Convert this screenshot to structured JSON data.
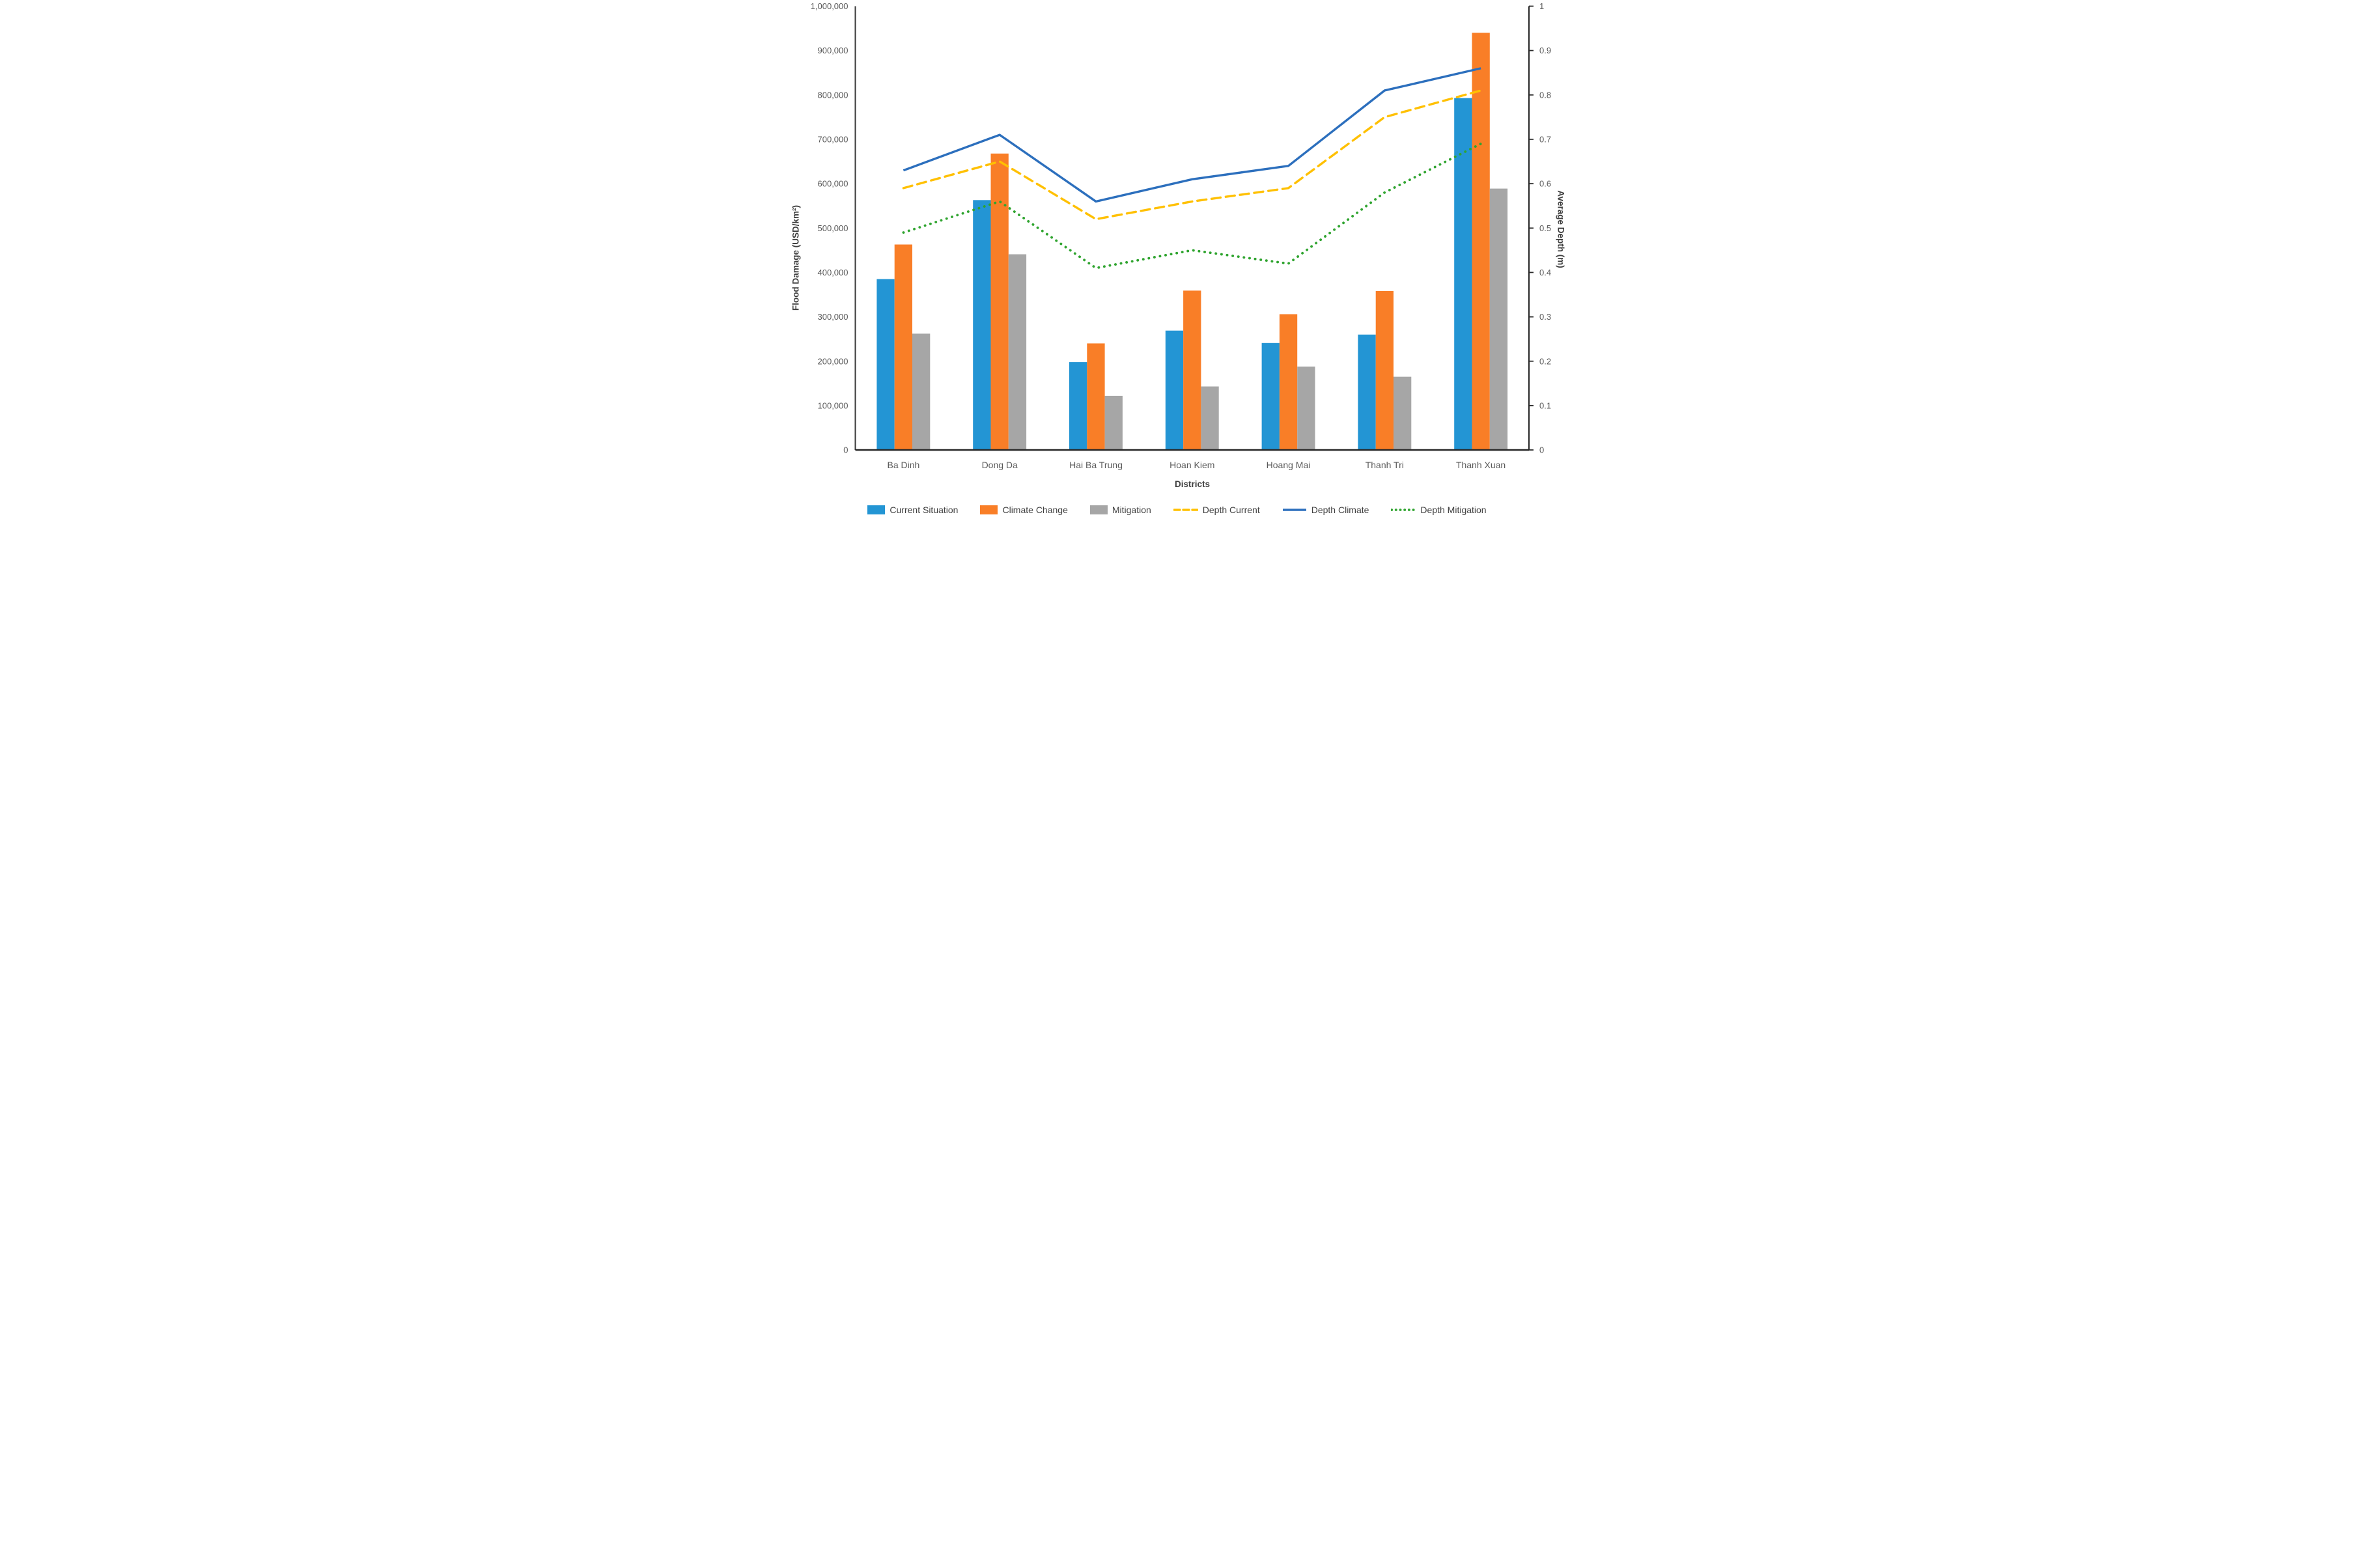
{
  "chart_data": {
    "type": "bar+line",
    "categories": [
      "Ba Dinh",
      "Dong Da",
      "Hai Ba Trung",
      "Hoan Kiem",
      "Hoang Mai",
      "Thanh Tri",
      "Thanh Xuan"
    ],
    "bar_series": [
      {
        "name": "Current Situation",
        "color": "#2395D4",
        "axis": "left",
        "values": [
          385000,
          563000,
          198000,
          269000,
          241000,
          260000,
          793000
        ]
      },
      {
        "name": "Climate Change",
        "color": "#F97E27",
        "axis": "left",
        "values": [
          463000,
          668000,
          240000,
          359000,
          306000,
          358000,
          940000
        ]
      },
      {
        "name": "Mitigation",
        "color": "#A6A6A6",
        "axis": "left",
        "values": [
          262000,
          441000,
          122000,
          143000,
          188000,
          165000,
          589000
        ]
      }
    ],
    "line_series": [
      {
        "name": "Depth Current",
        "color": "#FFC000",
        "style": "dashed",
        "axis": "right",
        "values": [
          0.59,
          0.65,
          0.52,
          0.56,
          0.59,
          0.75,
          0.81
        ]
      },
      {
        "name": "Depth Climate",
        "color": "#2C6FBD",
        "style": "solid",
        "axis": "right",
        "values": [
          0.63,
          0.71,
          0.56,
          0.61,
          0.64,
          0.81,
          0.86
        ]
      },
      {
        "name": "Depth Mitigation",
        "color": "#2FA42F",
        "style": "dotted",
        "axis": "right",
        "values": [
          0.49,
          0.56,
          0.41,
          0.45,
          0.42,
          0.58,
          0.69
        ]
      }
    ],
    "left_axis": {
      "title": "Flood Damage (USD/km²)",
      "min": 0,
      "max": 1000000,
      "tick_labels": [
        "0",
        "100,000",
        "200,000",
        "300,000",
        "400,000",
        "500,000",
        "600,000",
        "700,000",
        "800,000",
        "900,000",
        "1,000,000"
      ]
    },
    "right_axis": {
      "title": "Average Depth (m)",
      "min": 0,
      "max": 1,
      "tick_labels": [
        "0",
        "0.1",
        "0.2",
        "0.3",
        "0.4",
        "0.5",
        "0.6",
        "0.7",
        "0.8",
        "0.9",
        "1"
      ]
    },
    "x_axis": {
      "title": "Districts"
    },
    "grid": false,
    "legend": {
      "position": "bottom",
      "items": [
        "Current Situation",
        "Climate Change",
        "Mitigation",
        "Depth Current",
        "Depth Climate",
        "Depth Mitigation"
      ]
    }
  }
}
